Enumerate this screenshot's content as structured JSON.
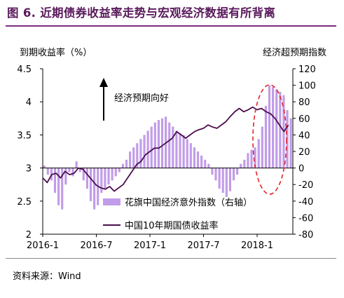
{
  "header": {
    "title": "图 6.  近期债券收益率走势与宏观经济数据有所背离"
  },
  "footer": {
    "source": "资料来源：Wind"
  },
  "chart_data": {
    "type": "bar",
    "left_axis_title": "到期收益率（%）",
    "right_axis_title": "经济超预期指数",
    "annotation": "经济预期向好",
    "left_ylim": [
      2,
      4.5
    ],
    "left_ticks": [
      "2",
      "2.5",
      "3",
      "3.5",
      "4",
      "4.5"
    ],
    "right_ylim": [
      -80,
      120
    ],
    "right_ticks": [
      "-80",
      "-60",
      "-40",
      "-20",
      "0",
      "20",
      "40",
      "60",
      "80",
      "100",
      "120"
    ],
    "x_range": [
      0,
      28
    ],
    "x_ticks": [
      {
        "x": 0,
        "label": "2016-1"
      },
      {
        "x": 6,
        "label": "2016-7"
      },
      {
        "x": 12,
        "label": "2017-1"
      },
      {
        "x": 18,
        "label": "2017-7"
      },
      {
        "x": 24,
        "label": "2018-1"
      }
    ],
    "grid": false,
    "legend_position": "bottom-center",
    "series": [
      {
        "name": "花旗中国经济意外指数（右轴）",
        "type": "bar",
        "axis": "right",
        "color": "#c19ce8",
        "x": [
          0.0,
          0.4,
          0.8,
          1.2,
          1.6,
          2.0,
          2.4,
          2.8,
          3.2,
          3.6,
          4.0,
          4.4,
          4.8,
          5.2,
          5.6,
          6.0,
          6.4,
          6.8,
          7.2,
          7.6,
          8.0,
          8.4,
          8.8,
          9.2,
          9.6,
          10.0,
          10.4,
          10.8,
          11.2,
          11.6,
          12.0,
          12.4,
          12.8,
          13.2,
          13.6,
          14.0,
          14.4,
          14.8,
          15.2,
          15.6,
          16.0,
          16.4,
          16.8,
          17.2,
          17.6,
          18.0,
          18.4,
          18.8,
          19.2,
          19.6,
          20.0,
          20.4,
          20.8,
          21.2,
          21.6,
          22.0,
          22.4,
          22.8,
          23.2,
          23.6,
          24.0,
          24.4,
          24.8,
          25.2,
          25.6,
          26.0,
          26.4,
          26.8,
          27.2,
          27.6
        ],
        "values": [
          3,
          -8,
          -15,
          -30,
          -45,
          -50,
          -20,
          -5,
          -10,
          8,
          -5,
          -15,
          -25,
          -40,
          -50,
          -45,
          -30,
          -25,
          -20,
          -15,
          -10,
          -5,
          5,
          10,
          20,
          25,
          30,
          35,
          40,
          45,
          50,
          55,
          58,
          60,
          62,
          55,
          50,
          45,
          42,
          40,
          35,
          30,
          25,
          20,
          15,
          10,
          5,
          -8,
          -15,
          -25,
          -30,
          -35,
          -28,
          -15,
          -8,
          5,
          10,
          18,
          22,
          25,
          35,
          50,
          75,
          100,
          98,
          95,
          92,
          88,
          70,
          60
        ]
      },
      {
        "name": "中国10年期国债收益率",
        "type": "line",
        "axis": "left",
        "color": "#4b0d4d",
        "x": [
          0,
          0.5,
          1,
          1.5,
          2,
          2.5,
          3,
          3.5,
          4,
          4.5,
          5,
          5.5,
          6,
          6.5,
          7,
          7.5,
          8,
          8.5,
          9,
          9.5,
          10,
          10.5,
          11,
          11.5,
          12,
          12.5,
          13,
          13.5,
          14,
          14.5,
          15,
          15.5,
          16,
          16.5,
          17,
          17.5,
          18,
          18.5,
          19,
          19.5,
          20,
          20.5,
          21,
          21.5,
          22,
          22.5,
          23,
          23.5,
          24,
          24.5,
          25,
          25.5,
          26,
          26.5,
          27,
          27.5
        ],
        "values": [
          2.85,
          2.78,
          2.9,
          2.92,
          2.85,
          2.95,
          2.9,
          2.92,
          3.0,
          2.98,
          2.9,
          2.82,
          2.74,
          2.7,
          2.68,
          2.72,
          2.65,
          2.7,
          2.75,
          2.85,
          2.95,
          3.05,
          3.1,
          3.2,
          3.25,
          3.3,
          3.3,
          3.35,
          3.4,
          3.45,
          3.55,
          3.5,
          3.45,
          3.5,
          3.55,
          3.58,
          3.6,
          3.65,
          3.62,
          3.6,
          3.65,
          3.7,
          3.78,
          3.85,
          3.9,
          3.85,
          3.88,
          3.92,
          3.88,
          3.9,
          3.85,
          3.82,
          3.75,
          3.65,
          3.55,
          3.65
        ]
      }
    ]
  }
}
